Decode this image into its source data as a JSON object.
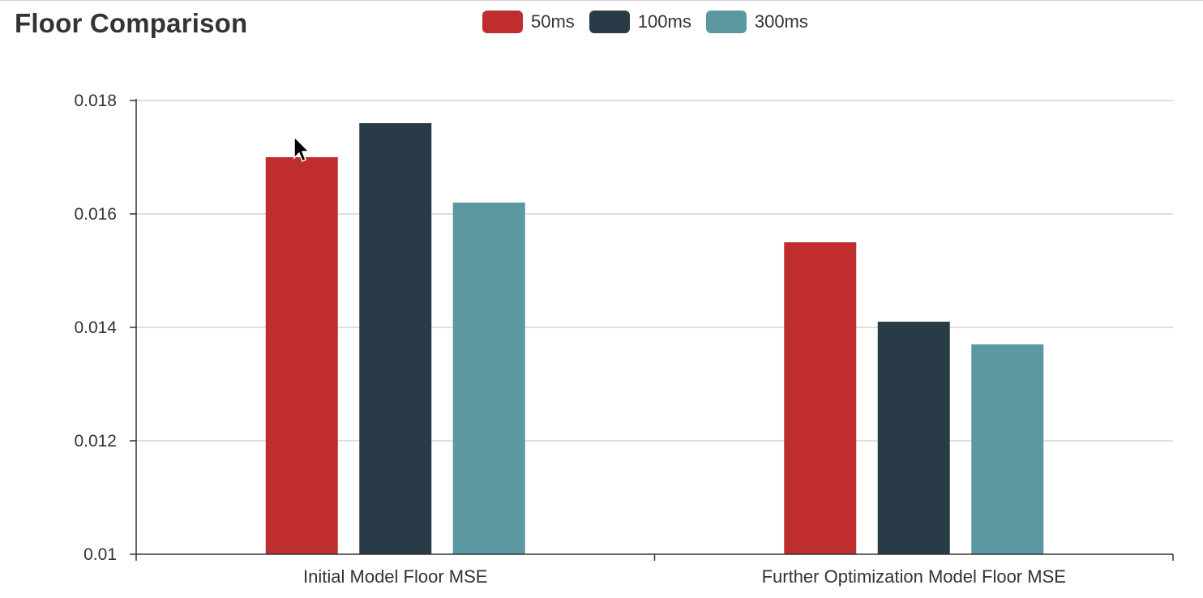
{
  "chart_data": {
    "type": "bar",
    "title": "Floor Comparison",
    "categories": [
      "Initial Model Floor MSE",
      "Further Optimization Model Floor MSE"
    ],
    "series": [
      {
        "name": "50ms",
        "color": "#c02d2e",
        "values": [
          0.017,
          0.0155
        ]
      },
      {
        "name": "100ms",
        "color": "#2a3b48",
        "values": [
          0.0176,
          0.0141
        ]
      },
      {
        "name": "300ms",
        "color": "#5b98a1",
        "values": [
          0.0162,
          0.0137
        ]
      }
    ],
    "ylim": [
      0.01,
      0.018
    ],
    "yticks": [
      "0.01",
      "0.012",
      "0.014",
      "0.016",
      "0.018"
    ],
    "xlabel": "",
    "ylabel": "",
    "grid": true,
    "legend_position": "top-center"
  }
}
